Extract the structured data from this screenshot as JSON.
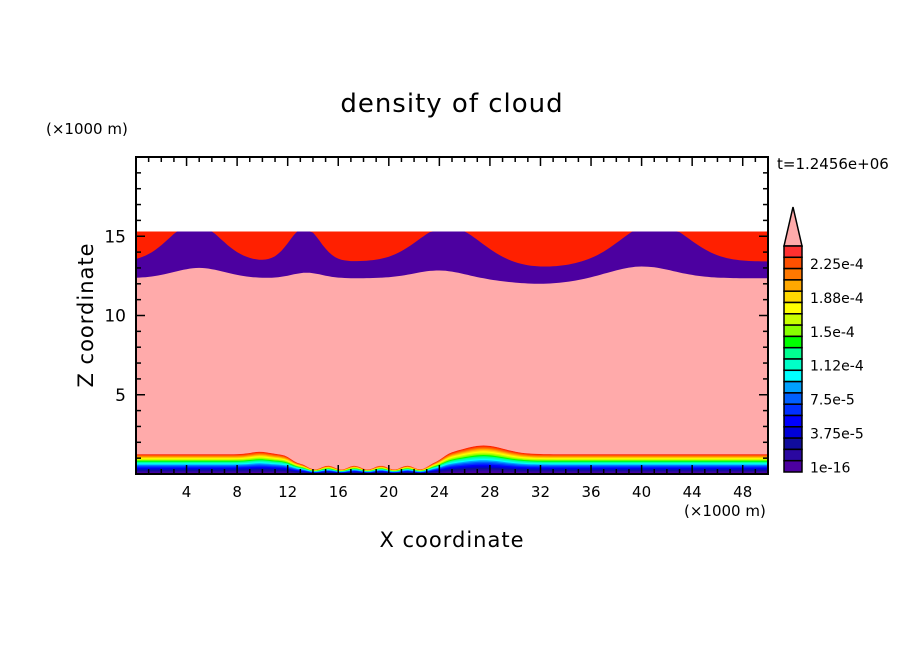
{
  "chart_data": {
    "type": "heatmap",
    "subtype": "filled-contour",
    "title": "density of cloud",
    "xlabel": "X coordinate",
    "ylabel": "Z coordinate",
    "x_unit": "(×1000 m)",
    "y_unit": "(×1000 m)",
    "time_label": "t=1.2456e+06",
    "xlim": [
      0,
      50
    ],
    "ylim": [
      0,
      20
    ],
    "x_ticks": [
      "4",
      "8",
      "12",
      "16",
      "20",
      "24",
      "28",
      "32",
      "36",
      "40",
      "44",
      "48"
    ],
    "x_tick_values": [
      4,
      8,
      12,
      16,
      20,
      24,
      28,
      32,
      36,
      40,
      44,
      48
    ],
    "y_ticks": [
      "5",
      "10",
      "15"
    ],
    "y_tick_values": [
      5,
      10,
      15
    ],
    "colorbar": {
      "labels": [
        "1e-16",
        "3.75e-5",
        "7.5e-5",
        "1.12e-4",
        "1.5e-4",
        "1.88e-4",
        "2.25e-4"
      ],
      "label_levels": [
        0,
        3,
        6,
        9,
        12,
        15,
        18
      ],
      "level_step": 1.25e-05,
      "n_levels": 20,
      "colors": [
        "#4c00a0",
        "#2a08a0",
        "#100c9c",
        "#0000d8",
        "#0000ff",
        "#0030ff",
        "#0060ff",
        "#00a0ff",
        "#00ffff",
        "#00ffc8",
        "#00ff90",
        "#00ff00",
        "#88ff00",
        "#c8ff00",
        "#ffff00",
        "#ffd800",
        "#ffa800",
        "#ff7800",
        "#ff5000",
        "#ff2000"
      ],
      "top_box_color": "#ff3030",
      "over_color": "#ffaaaa",
      "extend": "max"
    },
    "features": {
      "upper_cloud_layer_km": [
        12,
        15.3
      ],
      "upper_layer_crests_x": [
        4.5,
        13.5,
        25,
        41.5
      ],
      "lower_cloud_layer_km": [
        0,
        1.8
      ],
      "saturated_region_km": [
        1.2,
        12.4
      ]
    }
  }
}
